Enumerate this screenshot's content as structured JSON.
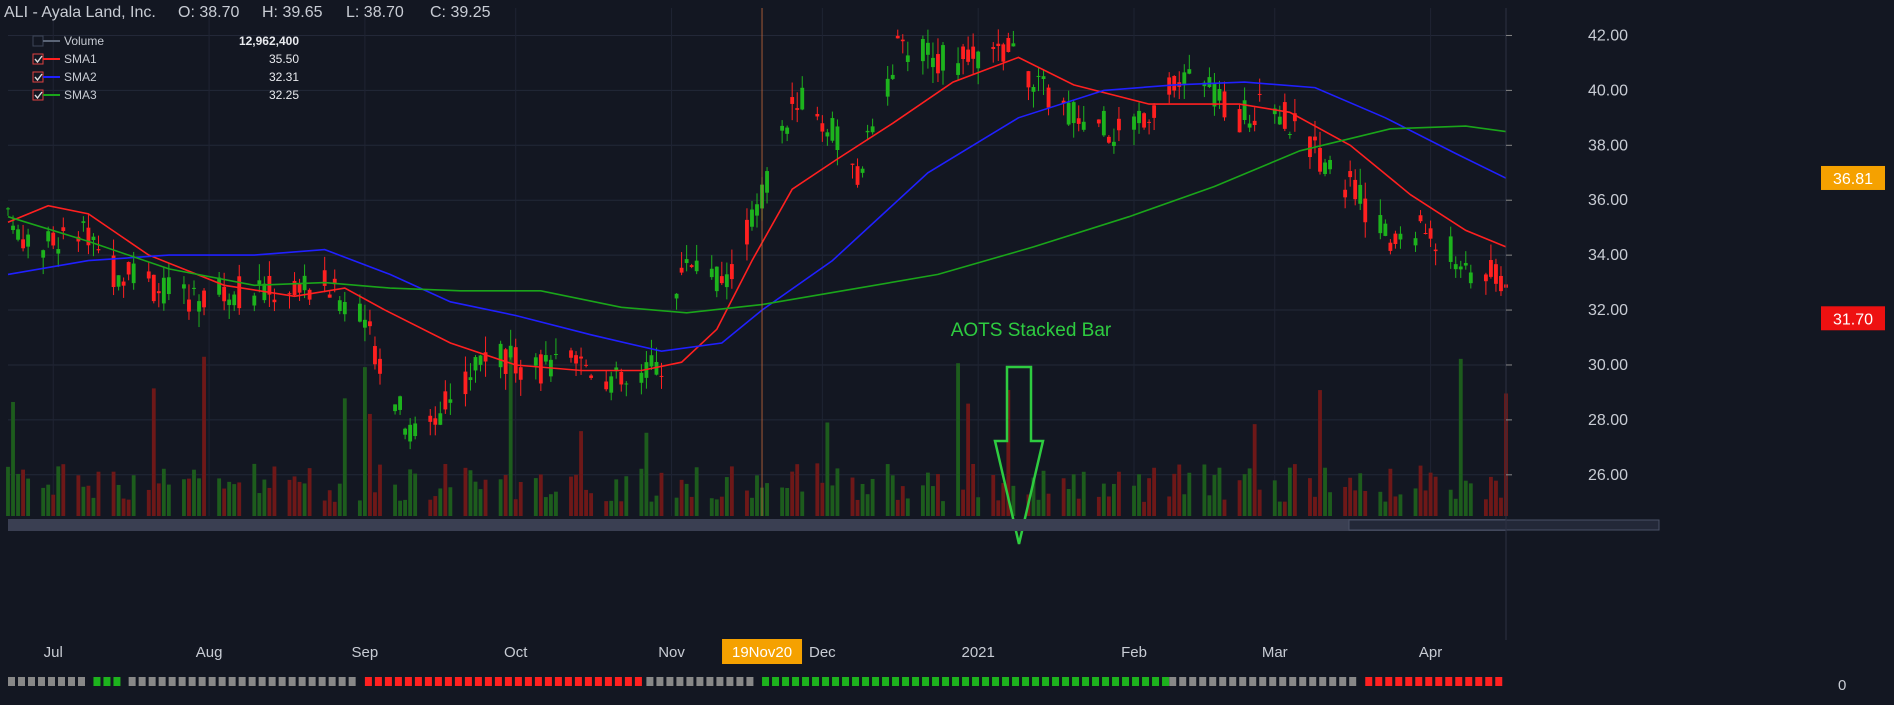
{
  "header": {
    "symbol": "ALI - Ayala Land, Inc.",
    "ohlc": [
      {
        "label": "O:",
        "value": "38.70"
      },
      {
        "label": "H:",
        "value": "39.65"
      },
      {
        "label": "L:",
        "value": "38.70"
      },
      {
        "label": "C:",
        "value": "39.25"
      }
    ]
  },
  "legend": [
    {
      "name": "Volume",
      "value": "12,962,400",
      "color": "#5b6577",
      "checked": false
    },
    {
      "name": "SMA1",
      "value": "35.50",
      "color": "#ff2020",
      "checked": true
    },
    {
      "name": "SMA2",
      "value": "32.31",
      "color": "#2020ff",
      "checked": true
    },
    {
      "name": "SMA3",
      "value": "32.25",
      "color": "#1aa51a",
      "checked": true
    }
  ],
  "annotation": {
    "text": "AOTS Stacked Bar",
    "color": "#2ecc40"
  },
  "crosshair_date_label": "19Nov20",
  "price_tags": [
    {
      "value": "36.81",
      "price": 36.81,
      "color": "#f5a100"
    },
    {
      "value": "31.70",
      "price": 31.7,
      "color": "#ee1111"
    }
  ],
  "aots_axis_label": "0",
  "colors": {
    "background": "#131722",
    "up": "#1db31d",
    "down": "#ff2020",
    "vol_up": "#1d5c1d",
    "vol_down": "#6e1818",
    "sma1": "#ff2020",
    "sma2": "#2020ff",
    "sma3": "#1aa51a"
  },
  "chart_data": {
    "type": "candlestick",
    "title": "ALI - Ayala Land, Inc.",
    "y_ticks": [
      "26.00",
      "28.00",
      "30.00",
      "32.00",
      "34.00",
      "36.00",
      "38.00",
      "40.00",
      "42.00"
    ],
    "ylim": [
      24.5,
      43.0
    ],
    "x_labels": [
      "Jul",
      "Aug",
      "Sep",
      "Oct",
      "Nov",
      "Dec",
      "2021",
      "Feb",
      "Mar",
      "Apr"
    ],
    "x_range": [
      "2020-06-22",
      "2021-04-16"
    ],
    "crosshair_date": "2020-11-19",
    "price_path": [
      [
        "2020-06-22",
        35.2
      ],
      [
        "2020-06-29",
        34.3
      ],
      [
        "2020-07-06",
        34.9
      ],
      [
        "2020-07-13",
        33.4
      ],
      [
        "2020-07-27",
        32.5
      ],
      [
        "2020-08-10",
        32.7
      ],
      [
        "2020-08-24",
        33.0
      ],
      [
        "2020-09-01",
        31.5
      ],
      [
        "2020-09-10",
        27.5
      ],
      [
        "2020-09-17",
        28.5
      ],
      [
        "2020-09-25",
        30.5
      ],
      [
        "2020-10-05",
        29.8
      ],
      [
        "2020-10-15",
        30.1
      ],
      [
        "2020-10-23",
        29.2
      ],
      [
        "2020-10-30",
        30.1
      ],
      [
        "2020-11-04",
        34.0
      ],
      [
        "2020-11-12",
        33.0
      ],
      [
        "2020-11-19",
        36.2
      ],
      [
        "2020-11-26",
        39.8
      ],
      [
        "2020-12-03",
        38.5
      ],
      [
        "2020-12-08",
        36.8
      ],
      [
        "2020-12-16",
        41.5
      ],
      [
        "2020-12-29",
        41.0
      ],
      [
        "2021-01-07",
        41.5
      ],
      [
        "2021-01-14",
        40.0
      ],
      [
        "2021-01-21",
        39.0
      ],
      [
        "2021-01-29",
        38.5
      ],
      [
        "2021-02-05",
        39.5
      ],
      [
        "2021-02-12",
        40.5
      ],
      [
        "2021-02-22",
        39.0
      ],
      [
        "2021-03-01",
        39.5
      ],
      [
        "2021-03-08",
        38.0
      ],
      [
        "2021-03-16",
        36.5
      ],
      [
        "2021-03-24",
        34.5
      ],
      [
        "2021-03-31",
        35.0
      ],
      [
        "2021-04-09",
        33.5
      ],
      [
        "2021-04-16",
        33.2
      ]
    ],
    "series": [
      {
        "name": "SMA1",
        "color": "#ff2020",
        "points": [
          [
            "2020-06-22",
            35.2
          ],
          [
            "2020-06-30",
            35.8
          ],
          [
            "2020-07-08",
            35.5
          ],
          [
            "2020-07-20",
            34.0
          ],
          [
            "2020-08-04",
            32.9
          ],
          [
            "2020-08-18",
            32.5
          ],
          [
            "2020-08-28",
            32.8
          ],
          [
            "2020-09-05",
            32.0
          ],
          [
            "2020-09-18",
            30.8
          ],
          [
            "2020-10-01",
            30.0
          ],
          [
            "2020-10-14",
            29.8
          ],
          [
            "2020-10-26",
            29.8
          ],
          [
            "2020-11-03",
            30.1
          ],
          [
            "2020-11-10",
            31.3
          ],
          [
            "2020-11-17",
            33.8
          ],
          [
            "2020-11-25",
            36.4
          ],
          [
            "2020-12-04",
            37.5
          ],
          [
            "2020-12-15",
            38.8
          ],
          [
            "2020-12-27",
            40.3
          ],
          [
            "2021-01-09",
            41.2
          ],
          [
            "2021-01-20",
            40.2
          ],
          [
            "2021-02-04",
            39.5
          ],
          [
            "2021-02-22",
            39.5
          ],
          [
            "2021-03-04",
            39.2
          ],
          [
            "2021-03-16",
            38.0
          ],
          [
            "2021-03-28",
            36.2
          ],
          [
            "2021-04-08",
            34.9
          ],
          [
            "2021-04-16",
            34.3
          ]
        ]
      },
      {
        "name": "SMA2",
        "color": "#2020ff",
        "points": [
          [
            "2020-06-22",
            33.3
          ],
          [
            "2020-07-08",
            33.8
          ],
          [
            "2020-07-24",
            34.0
          ],
          [
            "2020-08-10",
            34.0
          ],
          [
            "2020-08-24",
            34.2
          ],
          [
            "2020-09-06",
            33.3
          ],
          [
            "2020-09-18",
            32.3
          ],
          [
            "2020-10-01",
            31.8
          ],
          [
            "2020-10-16",
            31.1
          ],
          [
            "2020-10-30",
            30.5
          ],
          [
            "2020-11-11",
            30.8
          ],
          [
            "2020-11-19",
            32.0
          ],
          [
            "2020-12-03",
            33.8
          ],
          [
            "2020-12-22",
            37.0
          ],
          [
            "2021-01-09",
            39.0
          ],
          [
            "2021-01-26",
            40.0
          ],
          [
            "2021-02-09",
            40.2
          ],
          [
            "2021-02-23",
            40.3
          ],
          [
            "2021-03-09",
            40.1
          ],
          [
            "2021-03-23",
            39.0
          ],
          [
            "2021-04-06",
            37.7
          ],
          [
            "2021-04-16",
            36.8
          ]
        ]
      },
      {
        "name": "SMA3",
        "color": "#1aa51a",
        "points": [
          [
            "2020-06-22",
            35.4
          ],
          [
            "2020-07-08",
            34.5
          ],
          [
            "2020-07-24",
            33.5
          ],
          [
            "2020-08-10",
            32.9
          ],
          [
            "2020-08-24",
            33.0
          ],
          [
            "2020-09-06",
            32.8
          ],
          [
            "2020-09-20",
            32.7
          ],
          [
            "2020-10-06",
            32.7
          ],
          [
            "2020-10-22",
            32.1
          ],
          [
            "2020-11-04",
            31.9
          ],
          [
            "2020-11-19",
            32.2
          ],
          [
            "2020-12-05",
            32.7
          ],
          [
            "2020-12-24",
            33.3
          ],
          [
            "2021-01-12",
            34.3
          ],
          [
            "2021-01-31",
            35.4
          ],
          [
            "2021-02-17",
            36.5
          ],
          [
            "2021-03-06",
            37.8
          ],
          [
            "2021-03-24",
            38.6
          ],
          [
            "2021-04-08",
            38.7
          ],
          [
            "2021-04-16",
            38.5
          ]
        ]
      }
    ],
    "volume_scale_max": 30000000,
    "aots_stacked_bar": [
      {
        "from": "2020-06-22",
        "to": "2020-07-09",
        "color": "#888888"
      },
      {
        "from": "2020-07-09",
        "to": "2020-07-16",
        "color": "#1db31d"
      },
      {
        "from": "2020-07-16",
        "to": "2020-09-01",
        "color": "#888888"
      },
      {
        "from": "2020-09-01",
        "to": "2020-10-27",
        "color": "#ff2020"
      },
      {
        "from": "2020-10-27",
        "to": "2020-11-19",
        "color": "#888888"
      },
      {
        "from": "2020-11-19",
        "to": "2021-02-08",
        "color": "#1db31d"
      },
      {
        "from": "2021-02-08",
        "to": "2021-03-19",
        "color": "#888888"
      },
      {
        "from": "2021-03-19",
        "to": "2021-04-16",
        "color": "#ff2020"
      }
    ]
  }
}
